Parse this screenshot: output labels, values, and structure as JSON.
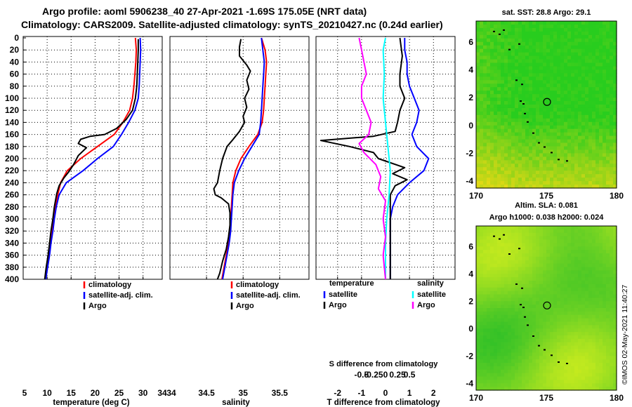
{
  "title_line1": "Argo profile: aoml 5906238_40 27-Apr-2021 -1.69S 175.05E (NRT data)",
  "title_line2": "Climatology: CARS2009. Satellite-adjusted climatology: synTS_20210427.nc (0.24d earlier)",
  "colors": {
    "climatology": "#ff0000",
    "satellite": "#0000ff",
    "argo": "#000000",
    "sat_temp_diff": "#ff00ff",
    "sat_sal_diff": "#00ffff",
    "circle": "#000000"
  },
  "chart_data": [
    {
      "type": "line",
      "id": "temperature",
      "xlabel": "temperature (deg C)",
      "ylabel": "",
      "xlim": [
        5,
        34
      ],
      "ylim": [
        400,
        0
      ],
      "x_ticks": [
        5,
        10,
        15,
        20,
        25,
        30,
        34
      ],
      "y_ticks": [
        0,
        20,
        40,
        60,
        80,
        100,
        120,
        140,
        160,
        180,
        200,
        220,
        240,
        260,
        280,
        300,
        320,
        340,
        360,
        380,
        400
      ],
      "legend": [
        "climatology",
        "satellite-adj. clim.",
        "Argo"
      ],
      "legend_position": "bottom-right",
      "series": [
        {
          "name": "climatology",
          "color": "#ff0000",
          "points": [
            [
              28.4,
              0
            ],
            [
              28.6,
              20
            ],
            [
              28.5,
              40
            ],
            [
              28.3,
              60
            ],
            [
              28.1,
              80
            ],
            [
              27.8,
              100
            ],
            [
              27.2,
              120
            ],
            [
              25.8,
              140
            ],
            [
              24.0,
              160
            ],
            [
              20.5,
              180
            ],
            [
              17.0,
              200
            ],
            [
              14.2,
              220
            ],
            [
              12.8,
              240
            ],
            [
              12.2,
              260
            ],
            [
              11.7,
              280
            ],
            [
              11.3,
              300
            ],
            [
              11.0,
              320
            ],
            [
              10.7,
              340
            ],
            [
              10.3,
              360
            ],
            [
              10.0,
              380
            ],
            [
              9.6,
              400
            ]
          ]
        },
        {
          "name": "satellite-adj. clim.",
          "color": "#0000ff",
          "points": [
            [
              29.4,
              0
            ],
            [
              29.5,
              20
            ],
            [
              29.4,
              40
            ],
            [
              29.3,
              60
            ],
            [
              29.2,
              80
            ],
            [
              29.0,
              100
            ],
            [
              28.3,
              120
            ],
            [
              27.0,
              140
            ],
            [
              25.5,
              160
            ],
            [
              23.8,
              180
            ],
            [
              20.5,
              200
            ],
            [
              17.5,
              220
            ],
            [
              14.0,
              240
            ],
            [
              12.5,
              260
            ],
            [
              11.9,
              280
            ],
            [
              11.5,
              300
            ],
            [
              11.2,
              320
            ],
            [
              10.8,
              340
            ],
            [
              10.5,
              360
            ],
            [
              10.1,
              380
            ],
            [
              9.7,
              400
            ]
          ]
        },
        {
          "name": "Argo",
          "color": "#000000",
          "points": [
            [
              29.0,
              2
            ],
            [
              29.0,
              20
            ],
            [
              28.9,
              40
            ],
            [
              28.8,
              60
            ],
            [
              28.7,
              80
            ],
            [
              28.4,
              100
            ],
            [
              27.8,
              120
            ],
            [
              26.5,
              135
            ],
            [
              24.5,
              150
            ],
            [
              22.0,
              160
            ],
            [
              19.0,
              163
            ],
            [
              17.0,
              168
            ],
            [
              16.5,
              175
            ],
            [
              18.2,
              182
            ],
            [
              16.5,
              195
            ],
            [
              15.5,
              210
            ],
            [
              14.5,
              222
            ],
            [
              13.5,
              232
            ],
            [
              12.5,
              245
            ],
            [
              12.0,
              258
            ],
            [
              11.5,
              280
            ],
            [
              11.2,
              300
            ],
            [
              10.8,
              320
            ],
            [
              10.5,
              340
            ],
            [
              10.2,
              360
            ],
            [
              9.8,
              380
            ],
            [
              9.5,
              400
            ]
          ]
        }
      ]
    },
    {
      "type": "line",
      "id": "salinity",
      "xlabel": "salinity",
      "xlim": [
        34,
        35.9
      ],
      "ylim": [
        400,
        0
      ],
      "x_ticks": [
        34,
        34.5,
        35,
        35.5
      ],
      "legend": [
        "climatology",
        "satellite-adj. clim.",
        "Argo"
      ],
      "legend_position": "bottom-right",
      "series": [
        {
          "name": "climatology",
          "color": "#ff0000",
          "points": [
            [
              35.25,
              0
            ],
            [
              35.3,
              20
            ],
            [
              35.32,
              40
            ],
            [
              35.31,
              60
            ],
            [
              35.3,
              80
            ],
            [
              35.29,
              100
            ],
            [
              35.28,
              120
            ],
            [
              35.26,
              140
            ],
            [
              35.2,
              160
            ],
            [
              35.08,
              180
            ],
            [
              34.97,
              200
            ],
            [
              34.9,
              220
            ],
            [
              34.86,
              240
            ],
            [
              34.85,
              260
            ],
            [
              34.84,
              280
            ],
            [
              34.83,
              300
            ],
            [
              34.82,
              320
            ],
            [
              34.8,
              340
            ],
            [
              34.77,
              360
            ],
            [
              34.74,
              380
            ],
            [
              34.71,
              400
            ]
          ]
        },
        {
          "name": "satellite-adj. clim.",
          "color": "#0000ff",
          "points": [
            [
              35.25,
              0
            ],
            [
              35.27,
              20
            ],
            [
              35.29,
              40
            ],
            [
              35.28,
              60
            ],
            [
              35.27,
              80
            ],
            [
              35.26,
              100
            ],
            [
              35.25,
              120
            ],
            [
              35.24,
              140
            ],
            [
              35.22,
              160
            ],
            [
              35.12,
              180
            ],
            [
              35.02,
              200
            ],
            [
              34.94,
              220
            ],
            [
              34.88,
              240
            ],
            [
              34.86,
              260
            ],
            [
              34.85,
              280
            ],
            [
              34.84,
              300
            ],
            [
              34.83,
              320
            ],
            [
              34.81,
              340
            ],
            [
              34.78,
              360
            ],
            [
              34.75,
              380
            ],
            [
              34.72,
              400
            ]
          ]
        },
        {
          "name": "Argo",
          "color": "#000000",
          "points": [
            [
              34.97,
              2
            ],
            [
              34.95,
              15
            ],
            [
              34.95,
              30
            ],
            [
              35.05,
              45
            ],
            [
              35.1,
              55
            ],
            [
              35.05,
              70
            ],
            [
              35.08,
              85
            ],
            [
              35.02,
              100
            ],
            [
              35.05,
              115
            ],
            [
              35.0,
              130
            ],
            [
              35.02,
              140
            ],
            [
              34.95,
              155
            ],
            [
              34.85,
              170
            ],
            [
              34.78,
              180
            ],
            [
              34.72,
              200
            ],
            [
              34.68,
              220
            ],
            [
              34.65,
              240
            ],
            [
              34.6,
              250
            ],
            [
              34.62,
              260
            ],
            [
              34.7,
              265
            ],
            [
              34.8,
              275
            ],
            [
              34.82,
              290
            ],
            [
              34.82,
              310
            ],
            [
              34.8,
              330
            ],
            [
              34.77,
              350
            ],
            [
              34.72,
              370
            ],
            [
              34.68,
              390
            ],
            [
              34.65,
              400
            ]
          ]
        }
      ]
    },
    {
      "type": "line",
      "id": "differences",
      "xlabel": "T difference from climatology",
      "xlabel_top": "S difference from climatology",
      "xlim": [
        -2.9,
        2.9
      ],
      "ylim": [
        400,
        0
      ],
      "x_ticks": [
        -2,
        -1,
        0,
        1,
        2
      ],
      "x_ticks_top": [
        -0.5,
        -0.25,
        0,
        0.25,
        0.5
      ],
      "legend_left_title": "temperature",
      "legend_right_title": "salinity",
      "legend_left": [
        "satellite",
        "Argo"
      ],
      "legend_right": [
        "satellite",
        "Argo"
      ],
      "series": [
        {
          "name": "temperature satellite",
          "color": "#0000ff",
          "points": [
            [
              0.8,
              0
            ],
            [
              0.8,
              20
            ],
            [
              0.9,
              40
            ],
            [
              0.9,
              60
            ],
            [
              1.0,
              80
            ],
            [
              1.2,
              100
            ],
            [
              1.4,
              120
            ],
            [
              1.3,
              140
            ],
            [
              1.1,
              160
            ],
            [
              1.3,
              180
            ],
            [
              1.8,
              200
            ],
            [
              1.6,
              220
            ],
            [
              1.0,
              240
            ],
            [
              0.5,
              260
            ],
            [
              0.3,
              280
            ],
            [
              0.2,
              300
            ],
            [
              0.2,
              320
            ],
            [
              0.2,
              340
            ],
            [
              0.2,
              360
            ],
            [
              0.2,
              380
            ],
            [
              0.2,
              400
            ]
          ]
        },
        {
          "name": "temperature Argo",
          "color": "#000000",
          "points": [
            [
              0.6,
              0
            ],
            [
              0.7,
              30
            ],
            [
              0.6,
              60
            ],
            [
              0.6,
              80
            ],
            [
              0.8,
              100
            ],
            [
              0.6,
              120
            ],
            [
              0.5,
              140
            ],
            [
              0.4,
              155
            ],
            [
              -0.5,
              163
            ],
            [
              -2.7,
              170
            ],
            [
              -1.5,
              180
            ],
            [
              -0.5,
              190
            ],
            [
              -0.3,
              200
            ],
            [
              0.8,
              215
            ],
            [
              0.3,
              225
            ],
            [
              0.9,
              235
            ],
            [
              0.4,
              245
            ],
            [
              0.2,
              260
            ],
            [
              0.2,
              280
            ],
            [
              0.2,
              300
            ],
            [
              0.2,
              320
            ],
            [
              0.2,
              340
            ],
            [
              0.2,
              360
            ],
            [
              0.2,
              380
            ],
            [
              0.2,
              400
            ]
          ]
        },
        {
          "name": "salinity satellite",
          "color": "#00ffff",
          "points": [
            [
              0.0,
              0
            ],
            [
              -0.1,
              20
            ],
            [
              -0.05,
              60
            ],
            [
              -0.1,
              100
            ],
            [
              0.0,
              140
            ],
            [
              0.1,
              180
            ],
            [
              0.2,
              220
            ],
            [
              0.15,
              260
            ],
            [
              0.05,
              300
            ],
            [
              0.0,
              340
            ],
            [
              0.0,
              380
            ],
            [
              0.0,
              400
            ]
          ]
        },
        {
          "name": "salinity Argo",
          "color": "#ff00ff",
          "points": [
            [
              -1.1,
              0
            ],
            [
              -1.0,
              20
            ],
            [
              -0.9,
              40
            ],
            [
              -0.8,
              60
            ],
            [
              -1.0,
              80
            ],
            [
              -1.0,
              100
            ],
            [
              -0.8,
              120
            ],
            [
              -0.6,
              140
            ],
            [
              -0.7,
              160
            ],
            [
              -1.1,
              175
            ],
            [
              -0.9,
              190
            ],
            [
              -0.4,
              210
            ],
            [
              -0.2,
              230
            ],
            [
              -0.3,
              250
            ],
            [
              0.0,
              270
            ],
            [
              -0.1,
              300
            ],
            [
              0.0,
              330
            ],
            [
              -0.1,
              360
            ],
            [
              0.0,
              400
            ]
          ]
        }
      ]
    }
  ],
  "map1": {
    "title": "sat. SST: 28.8 Argo: 29.1",
    "x_ticks": [
      170,
      175,
      180
    ],
    "y_ticks": [
      6,
      4,
      2,
      0,
      -2,
      -4
    ],
    "lon_range": [
      170,
      180
    ],
    "lat_range": [
      -4.5,
      7.5
    ],
    "profile_lon": 175.05,
    "profile_lat": 1.69
  },
  "map2": {
    "title_line1": "Altim. SLA: 0.081",
    "title_line2": "Argo h1000: 0.038 h2000: 0.024",
    "x_ticks": [
      170,
      175,
      180
    ],
    "y_ticks": [
      6,
      4,
      2,
      0,
      -2,
      -4
    ],
    "lon_range": [
      170,
      180
    ],
    "lat_range": [
      -4.5,
      7.5
    ],
    "profile_lon": 175.05,
    "profile_lat": 1.69
  },
  "credit": "©IMOS 02-May-2021 11:40:27"
}
